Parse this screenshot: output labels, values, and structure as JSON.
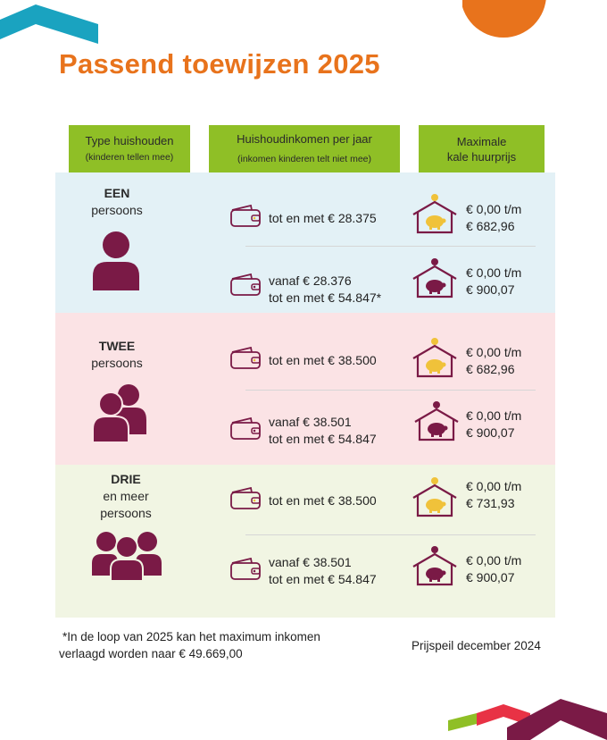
{
  "title": "Passend toewijzen 2025",
  "headers": {
    "col1": "Type huishouden",
    "col1_sub": "(kinderen tellen mee)",
    "col2": "Huishoudinkomen per jaar",
    "col2_sub": "(inkomen kinderen telt niet mee)",
    "col3_l1": "Maximale",
    "col3_l2": "kale huurprijs"
  },
  "groups": [
    {
      "name": "EEN",
      "sub1": "persoons",
      "sub2": "",
      "rows": [
        {
          "income_l1": "tot en met € 28.375",
          "income_l2": "",
          "rent_l1": "€ 0,00 t/m",
          "rent_l2": "€ 682,96"
        },
        {
          "income_l1": "vanaf € 28.376",
          "income_l2": "tot en met € 54.847*",
          "rent_l1": "€ 0,00 t/m",
          "rent_l2": "€ 900,07"
        }
      ]
    },
    {
      "name": "TWEE",
      "sub1": "persoons",
      "sub2": "",
      "rows": [
        {
          "income_l1": "tot en met € 38.500",
          "income_l2": "",
          "rent_l1": "€ 0,00 t/m",
          "rent_l2": "€ 682,96"
        },
        {
          "income_l1": "vanaf € 38.501",
          "income_l2": "tot en met € 54.847",
          "rent_l1": "€ 0,00 t/m",
          "rent_l2": "€ 900,07"
        }
      ]
    },
    {
      "name": "DRIE",
      "sub1": "en meer",
      "sub2": "persoons",
      "rows": [
        {
          "income_l1": "tot en met € 38.500",
          "income_l2": "",
          "rent_l1": "€ 0,00 t/m",
          "rent_l2": "€ 731,93"
        },
        {
          "income_l1": "vanaf € 38.501",
          "income_l2": "tot en met € 54.847",
          "rent_l1": "€ 0,00 t/m",
          "rent_l2": "€ 900,07"
        }
      ]
    }
  ],
  "footnote_l1": "*In de loop van 2025 kan het maximum inkomen",
  "footnote_l2": "verlaagd worden naar € 49.669,00",
  "price_level": "Prijspeil december 2024",
  "colors": {
    "title": "#e8731c",
    "header_bg": "#8fbf26",
    "section1_bg": "#e3f1f6",
    "section2_bg": "#fbe3e5",
    "section3_bg": "#f1f5e3",
    "maroon": "#7a1a46",
    "gold": "#f0c23a",
    "teal": "#1aa3c0"
  },
  "icons": {
    "wallet": "wallet-icon",
    "house_low": "house-piggybank-gold-icon",
    "house_high": "house-piggybank-maroon-icon",
    "person": "person-icon"
  }
}
